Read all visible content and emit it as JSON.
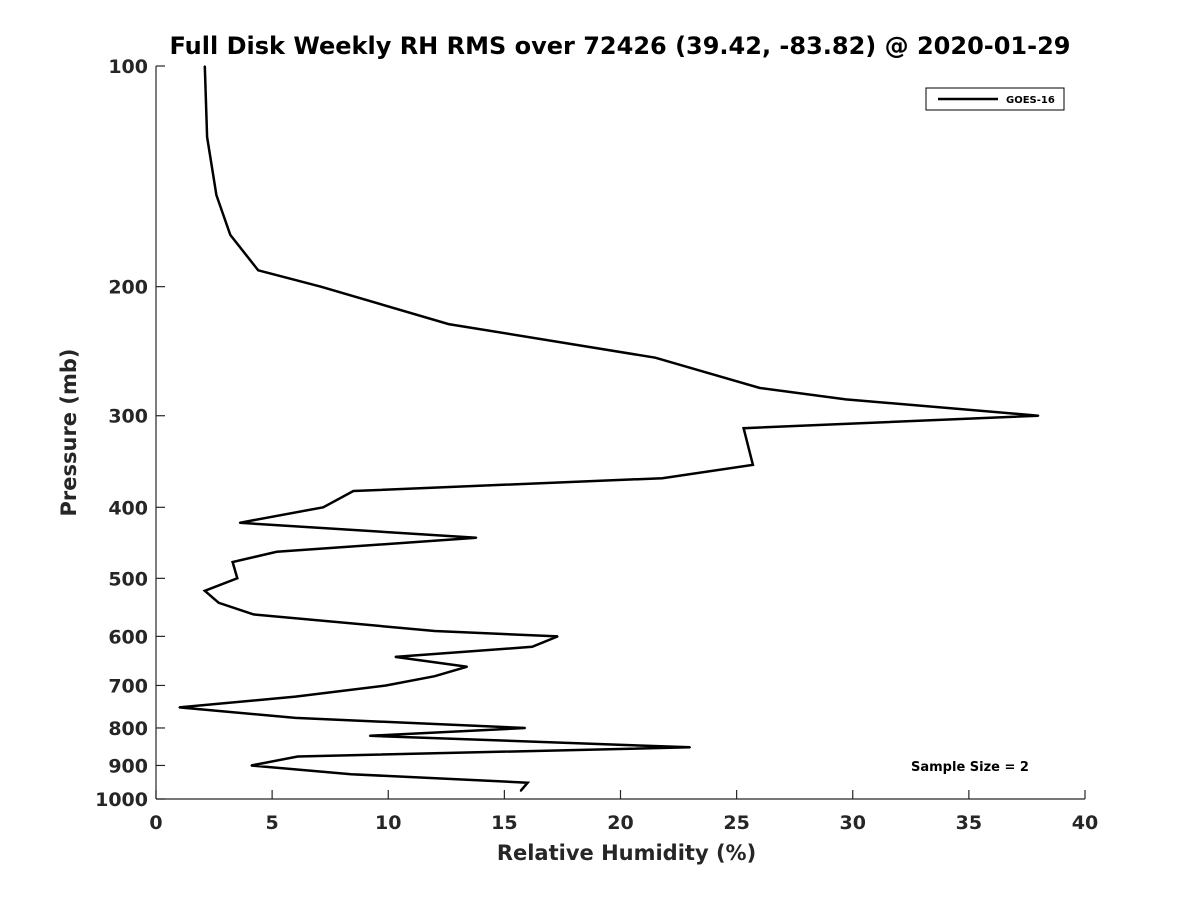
{
  "chart_data": {
    "type": "line",
    "title": "Full Disk Weekly RH RMS over 72426 (39.42, -83.82) @ 2020-01-29",
    "xlabel": "Relative Humidity (%)",
    "ylabel": "Pressure (mb)",
    "xlim": [
      0,
      40
    ],
    "ylim": [
      100,
      1000
    ],
    "yscale": "log",
    "y_reversed": true,
    "xticks": [
      "0",
      "5",
      "10",
      "15",
      "20",
      "25",
      "30",
      "35",
      "40"
    ],
    "yticks": [
      "100",
      "200",
      "300",
      "400",
      "500",
      "600",
      "700",
      "800",
      "900",
      "1000"
    ],
    "grid": false,
    "legend": {
      "position": "top-right",
      "entries": [
        "GOES-16"
      ]
    },
    "annotation": "Sample Size = 2",
    "series": [
      {
        "name": "GOES-16",
        "color": "#000000",
        "points": [
          [
            2.1,
            100
          ],
          [
            2.2,
            125
          ],
          [
            2.6,
            150
          ],
          [
            3.2,
            170
          ],
          [
            4.4,
            190
          ],
          [
            7.1,
            200
          ],
          [
            12.6,
            225
          ],
          [
            21.5,
            250
          ],
          [
            26.0,
            275
          ],
          [
            29.7,
            285
          ],
          [
            38.0,
            300
          ],
          [
            25.3,
            312
          ],
          [
            25.7,
            350
          ],
          [
            21.8,
            365
          ],
          [
            8.5,
            380
          ],
          [
            7.2,
            400
          ],
          [
            3.6,
            420
          ],
          [
            13.8,
            440
          ],
          [
            5.2,
            460
          ],
          [
            3.3,
            475
          ],
          [
            3.5,
            500
          ],
          [
            2.1,
            520
          ],
          [
            2.7,
            540
          ],
          [
            4.2,
            560
          ],
          [
            12.0,
            590
          ],
          [
            17.3,
            600
          ],
          [
            16.2,
            620
          ],
          [
            10.3,
            640
          ],
          [
            13.4,
            660
          ],
          [
            12.0,
            680
          ],
          [
            9.9,
            700
          ],
          [
            6.0,
            725
          ],
          [
            1.0,
            750
          ],
          [
            6.0,
            775
          ],
          [
            15.9,
            800
          ],
          [
            9.2,
            820
          ],
          [
            23.0,
            850
          ],
          [
            6.1,
            875
          ],
          [
            4.1,
            900
          ],
          [
            8.4,
            925
          ],
          [
            16.0,
            950
          ],
          [
            15.7,
            975
          ]
        ]
      }
    ]
  }
}
